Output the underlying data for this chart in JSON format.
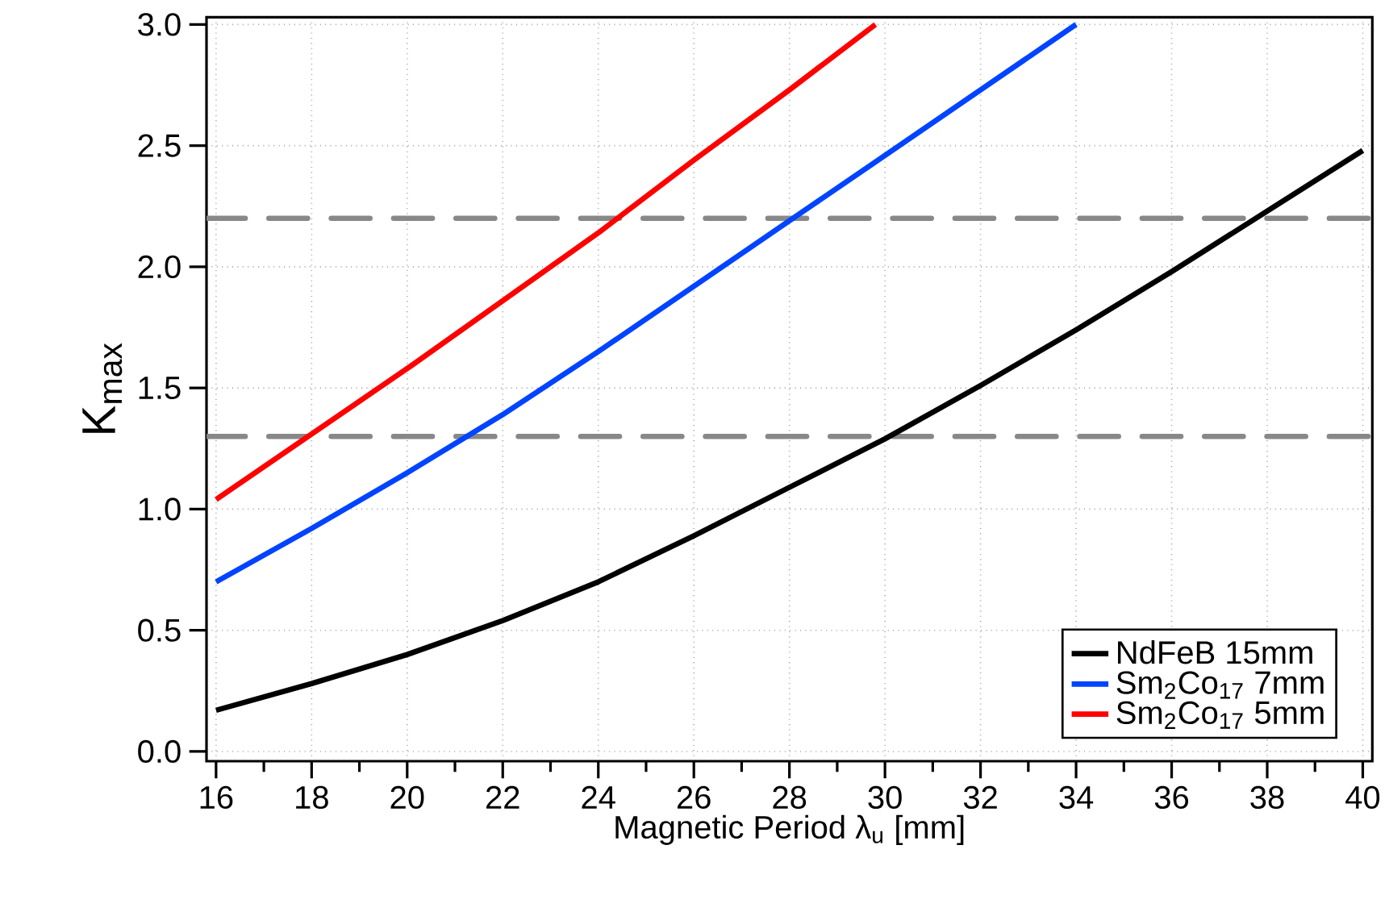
{
  "chart_data": {
    "type": "line",
    "xlabel": "Magnetic Period λ$_{u}$  [mm]",
    "ylabel": "K$_{max}$",
    "xlim": [
      15.8,
      40.2
    ],
    "ylim": [
      -0.04,
      3.03
    ],
    "xticks": [
      16,
      18,
      20,
      22,
      24,
      26,
      28,
      30,
      32,
      34,
      36,
      38,
      40
    ],
    "yticks": [
      {
        "value": 0,
        "label": "0.0"
      },
      {
        "value": 0.5,
        "label": "0.5"
      },
      {
        "value": 1,
        "label": "1.0"
      },
      {
        "value": 1.5,
        "label": "1.5"
      },
      {
        "value": 2,
        "label": "2.0"
      },
      {
        "value": 2.5,
        "label": "2.5"
      },
      {
        "value": 3,
        "label": "3.0"
      }
    ],
    "grid": true,
    "legend": "bottom right",
    "line_style": "solid",
    "marker": "none",
    "ref_lines": [
      {
        "axis": "y",
        "value": 1.3,
        "color": "#888888",
        "line_style": "dashed"
      },
      {
        "axis": "y",
        "value": 2.2,
        "color": "#888888",
        "line_style": "dashed"
      }
    ],
    "series": [
      {
        "name": "NdFeB    15mm",
        "color": "#000000",
        "x": [
          16,
          18,
          20,
          22,
          24,
          26,
          28,
          30,
          32,
          34,
          36,
          38,
          40
        ],
        "values": [
          0.17,
          0.28,
          0.4,
          0.54,
          0.7,
          0.89,
          1.09,
          1.29,
          1.51,
          1.74,
          1.98,
          2.23,
          2.48
        ]
      },
      {
        "name": "Sm$_{2}$Co$_{17}$  7mm",
        "color": "#0044ff",
        "x": [
          16,
          18,
          20,
          22,
          24,
          26,
          28,
          30,
          32,
          34
        ],
        "values": [
          0.7,
          0.92,
          1.15,
          1.39,
          1.65,
          1.92,
          2.19,
          2.46,
          2.73,
          3.0
        ]
      },
      {
        "name": "Sm$_{2}$Co$_{17}$  5mm",
        "color": "#ff0000",
        "x": [
          16,
          18,
          20,
          22,
          24,
          26,
          28,
          29.8
        ],
        "values": [
          1.04,
          1.31,
          1.58,
          1.86,
          2.14,
          2.44,
          2.73,
          3.0
        ]
      }
    ]
  }
}
